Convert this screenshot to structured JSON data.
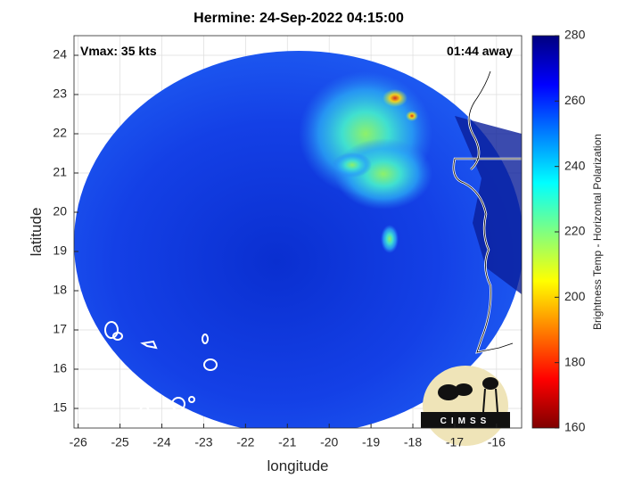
{
  "chart_data": {
    "type": "map",
    "title": "Hermine: 24-Sep-2022 04:15:00",
    "annotations": {
      "left": "Vmax: 35 kts",
      "right": "01:44 away"
    },
    "xlabel": "longitude",
    "ylabel": "latitude",
    "xlim": [
      -26.1,
      -15.4
    ],
    "ylim": [
      14.5,
      24.5
    ],
    "xticks": [
      -26,
      -25,
      -24,
      -23,
      -22,
      -21,
      -20,
      -19,
      -18,
      -17,
      -16
    ],
    "yticks": [
      15,
      16,
      17,
      18,
      19,
      20,
      21,
      22,
      23,
      24
    ],
    "grid": true,
    "colorbar": {
      "label": "Brightness Temp - Horizontal Polarization",
      "lim": [
        160,
        280
      ],
      "ticks": [
        160,
        180,
        200,
        220,
        240,
        260,
        280
      ]
    },
    "logo": "CIMSS"
  }
}
